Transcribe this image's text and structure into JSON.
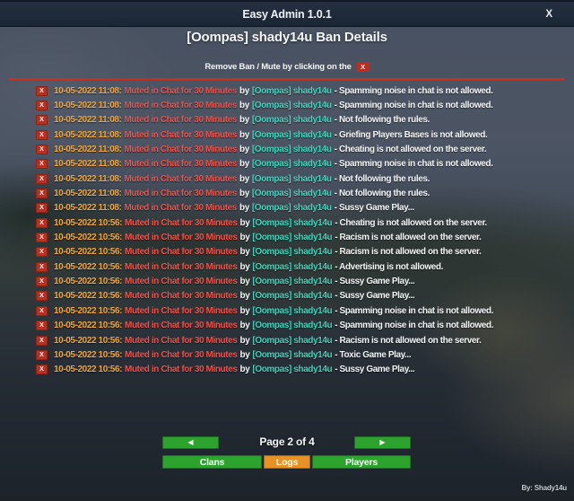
{
  "window": {
    "title": "Easy Admin 1.0.1",
    "close_label": "X",
    "credit": "By: Shady14u"
  },
  "header": {
    "subtitle": "[Oompas] shady14u Ban Details",
    "instruction": "Remove Ban / Mute by clicking on the",
    "instruction_badge": "X"
  },
  "colors": {
    "titlebar_bg": "#1e2a38",
    "accent_red": "#c32a1b",
    "timestamp_orange": "#f2a636",
    "action_red": "#e8524a",
    "admin_teal": "#3fd2ba",
    "button_green": "#2ba32c",
    "button_orange": "#e89225"
  },
  "logs": {
    "remove_label": "X",
    "rows": [
      {
        "ts": "10-05-2022 11:08:",
        "action": "Muted in Chat for 30 Minutes",
        "by": "by",
        "admin": "[Oompas] shady14u",
        "reason": "- Spamming noise in chat is not allowed."
      },
      {
        "ts": "10-05-2022 11:08:",
        "action": "Muted in Chat for 30 Minutes",
        "by": "by",
        "admin": "[Oompas] shady14u",
        "reason": "- Spamming noise in chat is not allowed."
      },
      {
        "ts": "10-05-2022 11:08:",
        "action": "Muted in Chat for 30 Minutes",
        "by": "by",
        "admin": "[Oompas] shady14u",
        "reason": "- Not following the rules."
      },
      {
        "ts": "10-05-2022 11:08:",
        "action": "Muted in Chat for 30 Minutes",
        "by": "by",
        "admin": "[Oompas] shady14u",
        "reason": "- Griefing Players Bases is not allowed."
      },
      {
        "ts": "10-05-2022 11:08:",
        "action": "Muted in Chat for 30 Minutes",
        "by": "by",
        "admin": "[Oompas] shady14u",
        "reason": "- Cheating is not allowed on the server."
      },
      {
        "ts": "10-05-2022 11:08:",
        "action": "Muted in Chat for 30 Minutes",
        "by": "by",
        "admin": "[Oompas] shady14u",
        "reason": "- Spamming noise in chat is not allowed."
      },
      {
        "ts": "10-05-2022 11:08:",
        "action": "Muted in Chat for 30 Minutes",
        "by": "by",
        "admin": "[Oompas] shady14u",
        "reason": "- Not following the rules."
      },
      {
        "ts": "10-05-2022 11:08:",
        "action": "Muted in Chat for 30 Minutes",
        "by": "by",
        "admin": "[Oompas] shady14u",
        "reason": "- Not following the rules."
      },
      {
        "ts": "10-05-2022 11:08:",
        "action": "Muted in Chat for 30 Minutes",
        "by": "by",
        "admin": "[Oompas] shady14u",
        "reason": "- Sussy Game Play..."
      },
      {
        "ts": "10-05-2022 10:56:",
        "action": "Muted in Chat for 30 Minutes",
        "by": "by",
        "admin": "[Oompas] shady14u",
        "reason": "- Cheating is not allowed on the server."
      },
      {
        "ts": "10-05-2022 10:56:",
        "action": "Muted in Chat for 30 Minutes",
        "by": "by",
        "admin": "[Oompas] shady14u",
        "reason": "- Racism is not allowed on the server."
      },
      {
        "ts": "10-05-2022 10:56:",
        "action": "Muted in Chat for 30 Minutes",
        "by": "by",
        "admin": "[Oompas] shady14u",
        "reason": "- Racism is not allowed on the server."
      },
      {
        "ts": "10-05-2022 10:56:",
        "action": "Muted in Chat for 30 Minutes",
        "by": "by",
        "admin": "[Oompas] shady14u",
        "reason": "- Advertising is not allowed."
      },
      {
        "ts": "10-05-2022 10:56:",
        "action": "Muted in Chat for 30 Minutes",
        "by": "by",
        "admin": "[Oompas] shady14u",
        "reason": "- Sussy Game Play..."
      },
      {
        "ts": "10-05-2022 10:56:",
        "action": "Muted in Chat for 30 Minutes",
        "by": "by",
        "admin": "[Oompas] shady14u",
        "reason": "- Sussy Game Play..."
      },
      {
        "ts": "10-05-2022 10:56:",
        "action": "Muted in Chat for 30 Minutes",
        "by": "by",
        "admin": "[Oompas] shady14u",
        "reason": "- Spamming noise in chat is not allowed."
      },
      {
        "ts": "10-05-2022 10:56:",
        "action": "Muted in Chat for 30 Minutes",
        "by": "by",
        "admin": "[Oompas] shady14u",
        "reason": "- Spamming noise in chat is not allowed."
      },
      {
        "ts": "10-05-2022 10:56:",
        "action": "Muted in Chat for 30 Minutes",
        "by": "by",
        "admin": "[Oompas] shady14u",
        "reason": "- Racism is not allowed on the server."
      },
      {
        "ts": "10-05-2022 10:56:",
        "action": "Muted in Chat for 30 Minutes",
        "by": "by",
        "admin": "[Oompas] shady14u",
        "reason": "- Toxic Game Play..."
      },
      {
        "ts": "10-05-2022 10:56:",
        "action": "Muted in Chat for 30 Minutes",
        "by": "by",
        "admin": "[Oompas] shady14u",
        "reason": "- Sussy Game Play..."
      }
    ]
  },
  "pagination": {
    "page_label": "Page 2 of 4",
    "prev_icon": "◀",
    "next_icon": "▶"
  },
  "footer_buttons": {
    "clans": "Clans",
    "logs": "Logs",
    "players": "Players"
  }
}
